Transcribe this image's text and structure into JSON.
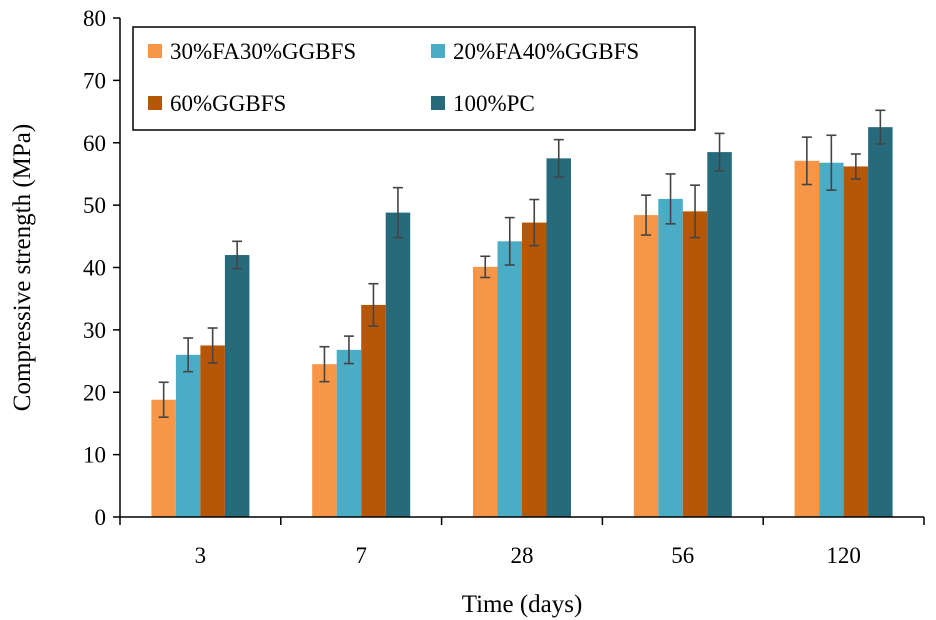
{
  "chart_data": {
    "type": "bar",
    "title": "",
    "xlabel": "Time (days)",
    "ylabel": "Compressive strength (MPa)",
    "ylim": [
      0,
      80
    ],
    "yticks": [
      0,
      10,
      20,
      30,
      40,
      50,
      60,
      70,
      80
    ],
    "categories": [
      "3",
      "7",
      "28",
      "56",
      "120"
    ],
    "grid": false,
    "legend_position": "top-left",
    "series": [
      {
        "name": "30%FA30%GGBFS",
        "color": "#f79646",
        "values": [
          18.8,
          24.5,
          40.1,
          48.4,
          57.1
        ],
        "errors": [
          2.8,
          2.8,
          1.7,
          3.2,
          3.8
        ]
      },
      {
        "name": "20%FA40%GGBFS",
        "color": "#4bacc6",
        "values": [
          26.0,
          26.8,
          44.2,
          51.0,
          56.8
        ],
        "errors": [
          2.7,
          2.2,
          3.8,
          4.0,
          4.4
        ]
      },
      {
        "name": "60%GGBFS",
        "color": "#b65708",
        "values": [
          27.5,
          34.0,
          47.2,
          49.0,
          56.2
        ],
        "errors": [
          2.8,
          3.4,
          3.7,
          4.2,
          2.0
        ]
      },
      {
        "name": "100%PC",
        "color": "#266a7c",
        "values": [
          42.0,
          48.8,
          57.5,
          58.5,
          62.5
        ],
        "errors": [
          2.2,
          4.0,
          3.0,
          3.0,
          2.7
        ]
      }
    ]
  }
}
